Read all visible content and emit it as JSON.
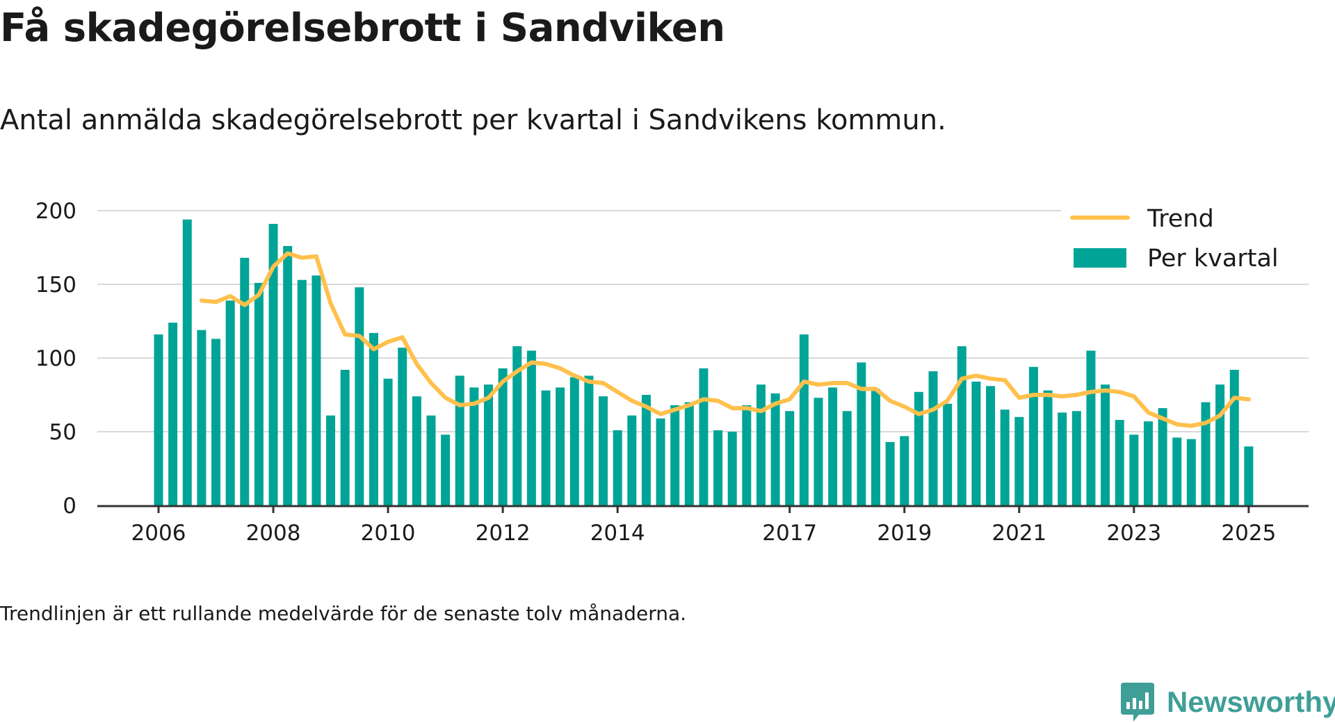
{
  "header": {
    "title": "Få skadegörelsebrott i Sandviken",
    "subtitle": "Antal anmälda skadegörelsebrott per kvartal i Sandvikens kommun."
  },
  "footnote": "Trendlinjen är ett rullande medelvärde för de senaste tolv månaderna.",
  "brand": {
    "name": "Newsworthy",
    "icon": "newsworthy-logo-icon"
  },
  "colors": {
    "bars": "#00a497",
    "trend": "#ffc04c",
    "grid": "#d9d9d9",
    "axis": "#333333",
    "brand": "#3f9f97"
  },
  "chart_data": {
    "type": "bar",
    "x_start": "2006 Q1",
    "x_end": "2025 Q1",
    "ylim": [
      0,
      200
    ],
    "yticks": [
      0,
      50,
      100,
      150,
      200
    ],
    "xtick_labels": [
      "2006",
      "2008",
      "2010",
      "2012",
      "2014",
      "2017",
      "2019",
      "2021",
      "2023",
      "2025"
    ],
    "legend_position": "top-right",
    "grid": true,
    "series": [
      {
        "name": "Per kvartal",
        "type": "bar",
        "values": [
          116,
          124,
          194,
          119,
          113,
          139,
          168,
          151,
          191,
          176,
          153,
          156,
          61,
          92,
          148,
          117,
          86,
          107,
          74,
          61,
          48,
          88,
          80,
          82,
          93,
          108,
          105,
          78,
          80,
          87,
          88,
          74,
          51,
          61,
          75,
          59,
          68,
          70,
          93,
          51,
          50,
          68,
          82,
          76,
          64,
          116,
          73,
          80,
          64,
          97,
          79,
          43,
          47,
          77,
          91,
          69,
          108,
          84,
          81,
          65,
          60,
          94,
          78,
          63,
          64,
          105,
          82,
          58,
          48,
          57,
          66,
          46,
          45,
          70,
          82,
          92,
          40
        ]
      },
      {
        "name": "Trend",
        "type": "line",
        "values": [
          null,
          null,
          null,
          139,
          138,
          142,
          136,
          143,
          162,
          171,
          168,
          169,
          137,
          116,
          115,
          106,
          111,
          114,
          96,
          83,
          73,
          68,
          69,
          73,
          84,
          91,
          97,
          96,
          93,
          88,
          84,
          83,
          77,
          71,
          67,
          62,
          65,
          68,
          72,
          71,
          66,
          66,
          64,
          69,
          72,
          84,
          82,
          83,
          83,
          79,
          79,
          71,
          67,
          62,
          65,
          71,
          86,
          88,
          86,
          85,
          73,
          75,
          75,
          74,
          75,
          77,
          78,
          77,
          74,
          63,
          59,
          55,
          54,
          56,
          61,
          73,
          72
        ]
      }
    ]
  }
}
